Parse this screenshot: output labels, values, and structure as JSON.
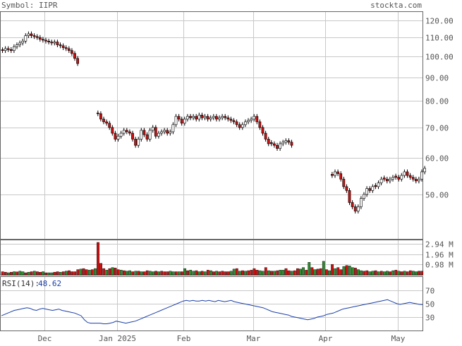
{
  "header": {
    "symbol_label": "Symbol: IIPR",
    "site": "stockta.com"
  },
  "colors": {
    "up": "#2e8b2e",
    "down": "#cc1111",
    "grid": "#c8c8c8",
    "rsi_line": "#1a3fa8",
    "rsi_value": "#1a3fa8",
    "text": "#555555"
  },
  "chart_data": [
    {
      "type": "candlestick",
      "title": "",
      "x_labels": [
        "Dec",
        "Jan 2025",
        "Feb",
        "Mar",
        "Apr",
        "May"
      ],
      "y_ticks": [
        "120.00",
        "110.00",
        "100.00",
        "90.00",
        "80.00",
        "70.00",
        "60.00",
        "50.00"
      ],
      "y_scale": "log",
      "ylim": [
        40,
        125
      ],
      "grid": true,
      "series": [
        {
          "segments": [
            {
              "start": 0,
              "values": [
                103,
                104,
                103.5,
                103,
                105,
                106,
                107,
                108,
                111,
                112,
                111,
                110.5,
                110,
                109,
                108.5,
                108,
                107.5,
                107,
                107.5,
                106,
                105.5,
                104.5,
                104,
                103,
                101.5,
                99,
                96.5
              ]
            },
            {
              "start": 33,
              "values": [
                75,
                73,
                72,
                71.5,
                70,
                68,
                66,
                67,
                68,
                69,
                68.5,
                68,
                66,
                64,
                66,
                69,
                67.5,
                66,
                69,
                70,
                67,
                68,
                68.5,
                69,
                68,
                68.5,
                71,
                74,
                73,
                71.5,
                73,
                74,
                73.5,
                74,
                73,
                74.5,
                73.5,
                74,
                73,
                73.5,
                74,
                73,
                73.5,
                74,
                73.5,
                73,
                72.5,
                72,
                71,
                70,
                71,
                72,
                72.5,
                73,
                74,
                72,
                70,
                68,
                66,
                64.5,
                64.5,
                64,
                63,
                64.5,
                65,
                65.5,
                65,
                64
              ]
            },
            {
              "start": 114,
              "values": [
                55,
                56,
                55.5,
                54,
                52,
                51,
                48,
                47,
                46,
                47,
                49,
                50,
                51.5,
                51,
                52,
                52,
                53,
                54,
                54,
                53.5,
                54,
                54.5,
                54.5,
                54,
                55,
                56,
                55,
                54.5,
                54,
                53.5,
                54,
                56,
                57
              ]
            }
          ]
        }
      ]
    },
    {
      "type": "bar",
      "title": "",
      "y_ticks": [
        "2.94 M",
        "1.96 M",
        "0.98 M"
      ],
      "ylim": [
        0,
        3.3
      ],
      "units": "M",
      "values": [
        0.3,
        0.25,
        0.2,
        0.25,
        0.3,
        0.28,
        0.35,
        0.3,
        0.2,
        0.25,
        0.3,
        0.35,
        0.3,
        0.25,
        0.3,
        0.2,
        0.2,
        0.2,
        0.25,
        0.3,
        0.25,
        0.3,
        0.35,
        0.4,
        0.3,
        0.3,
        0.5,
        0.55,
        0.6,
        0.5,
        0.45,
        0.5,
        0.6,
        3.1,
        1.1,
        0.6,
        0.45,
        0.6,
        0.7,
        0.65,
        0.5,
        0.45,
        0.4,
        0.35,
        0.4,
        0.3,
        0.35,
        0.35,
        0.3,
        0.3,
        0.4,
        0.35,
        0.3,
        0.35,
        0.3,
        0.35,
        0.3,
        0.3,
        0.35,
        0.3,
        0.3,
        0.3,
        0.3,
        0.6,
        0.4,
        0.45,
        0.35,
        0.4,
        0.3,
        0.35,
        0.3,
        0.45,
        0.4,
        0.3,
        0.35,
        0.3,
        0.35,
        0.3,
        0.3,
        0.35,
        0.55,
        0.6,
        0.35,
        0.4,
        0.35,
        0.4,
        0.45,
        0.6,
        0.45,
        0.4,
        0.35,
        0.7,
        0.4,
        0.35,
        0.35,
        0.4,
        0.45,
        0.45,
        0.6,
        0.4,
        0.35,
        0.4,
        0.6,
        0.55,
        0.7,
        0.45,
        1.2,
        0.7,
        0.5,
        0.55,
        0.6,
        1.3,
        0.5,
        0.4,
        1.0,
        0.6,
        0.7,
        0.5,
        0.8,
        0.9,
        0.85,
        0.7,
        0.65,
        0.5,
        0.4,
        0.35,
        0.4,
        0.3,
        0.35,
        0.4,
        0.3,
        0.35,
        0.3,
        0.35,
        0.3,
        0.4,
        0.45,
        0.35,
        0.3,
        0.35,
        0.3,
        0.4,
        0.35,
        0.3,
        0.35,
        0.35
      ],
      "up_flags": [
        0,
        0,
        1,
        0,
        1,
        0,
        1,
        1,
        0,
        1,
        0,
        1,
        0,
        0,
        1,
        0,
        1,
        1,
        0,
        0,
        1,
        0,
        1,
        0,
        0,
        0,
        0,
        1,
        0,
        0,
        1,
        0,
        1,
        0,
        0,
        0,
        1,
        0,
        1,
        0,
        0,
        1,
        0,
        1,
        1,
        0,
        1,
        0,
        1,
        0,
        0,
        1,
        1,
        0,
        1,
        0,
        0,
        0,
        1,
        1,
        0,
        1,
        0,
        1,
        0,
        1,
        1,
        0,
        1,
        0,
        1,
        0,
        1,
        0,
        1,
        0,
        0,
        0,
        0,
        1,
        1,
        0,
        1,
        0,
        1,
        0,
        0,
        0,
        0,
        1,
        1,
        0,
        1,
        0,
        1,
        0,
        1,
        1,
        0,
        0,
        1,
        0,
        0,
        1,
        1,
        0,
        1,
        0,
        1,
        0,
        0,
        1,
        0,
        1,
        0,
        1,
        0,
        0,
        1,
        0,
        1,
        1,
        0,
        1,
        1,
        0,
        0,
        1,
        1,
        0,
        1,
        0,
        1,
        1,
        0,
        1,
        0,
        1,
        0,
        1,
        0,
        0,
        1,
        1
      ]
    },
    {
      "type": "line",
      "title": "",
      "label": "RSI(14):",
      "current_value": "48.62",
      "y_ticks": [
        "70",
        "50",
        "30"
      ],
      "ylim": [
        10,
        90
      ],
      "values": [
        32,
        34,
        36,
        38,
        40,
        41,
        42,
        43,
        44,
        43,
        41,
        40,
        42,
        43,
        42,
        41,
        40,
        41,
        42,
        40,
        39,
        38,
        37,
        36,
        34,
        32,
        26,
        22,
        21,
        21,
        21,
        21,
        20,
        20,
        21,
        22,
        24,
        23,
        22,
        21,
        22,
        23,
        24,
        26,
        28,
        30,
        32,
        34,
        36,
        38,
        40,
        42,
        44,
        46,
        48,
        50,
        52,
        54,
        55,
        54,
        55,
        54,
        54,
        55,
        54,
        55,
        54,
        53,
        55,
        54,
        53,
        54,
        55,
        53,
        52,
        51,
        50,
        49,
        48,
        47,
        46,
        45,
        44,
        42,
        40,
        38,
        37,
        36,
        35,
        34,
        33,
        31,
        30,
        29,
        28,
        27,
        26,
        27,
        28,
        30,
        31,
        32,
        34,
        35,
        36,
        38,
        40,
        42,
        43,
        44,
        45,
        46,
        47,
        48,
        49,
        50,
        51,
        52,
        53,
        54,
        55,
        56,
        54,
        52,
        50,
        49,
        50,
        51,
        52,
        51,
        50,
        49,
        48.62
      ]
    }
  ]
}
